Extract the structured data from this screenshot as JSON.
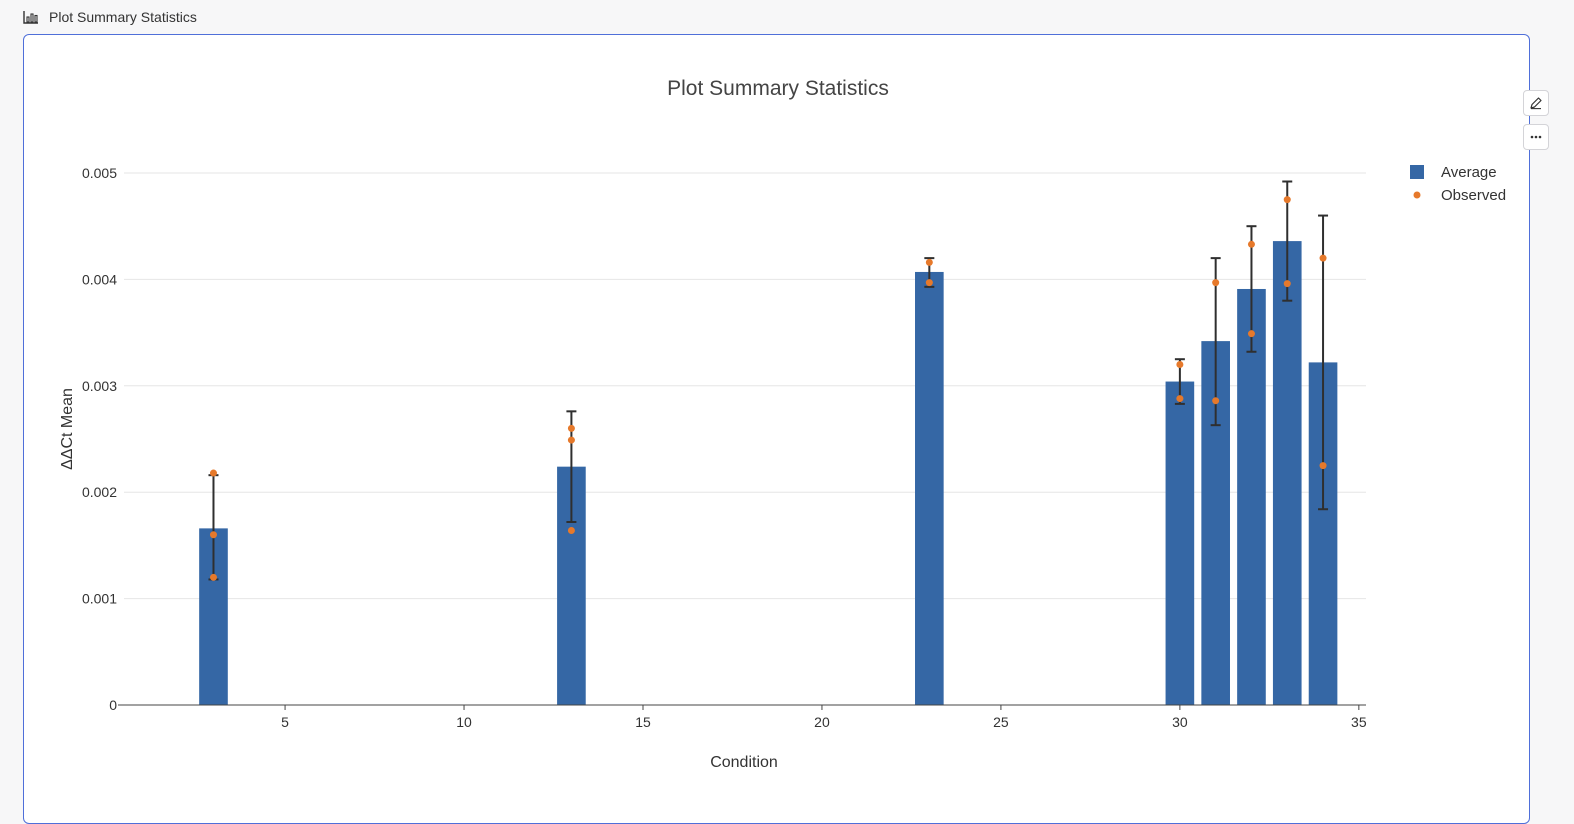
{
  "header": {
    "title": "Plot Summary Statistics",
    "icon": "bar-chart-icon"
  },
  "toolbar": {
    "edit_icon": "pencil-icon",
    "more_icon": "more-horizontal-icon"
  },
  "colors": {
    "bar": "#3567a5",
    "observed": "#e6792b",
    "error_bar": "#2f2f2f",
    "card_border": "#4f6fd9"
  },
  "chart_data": {
    "type": "bar",
    "title": "Plot Summary Statistics",
    "xlabel": "Condition",
    "ylabel": "ΔΔCt Mean",
    "xlim": [
      0.5,
      35.2
    ],
    "ylim": [
      0,
      0.005
    ],
    "x_ticks": [
      5,
      10,
      15,
      20,
      25,
      30,
      35
    ],
    "y_ticks": [
      0,
      0.001,
      0.002,
      0.003,
      0.004,
      0.005
    ],
    "y_tick_labels": [
      "0",
      "0.001",
      "0.002",
      "0.003",
      "0.004",
      "0.005"
    ],
    "grid": true,
    "legend": {
      "position": "top-right",
      "entries": [
        "Average",
        "Observed"
      ]
    },
    "series": [
      {
        "name": "Average",
        "type": "bar",
        "x": [
          3,
          13,
          23,
          30,
          31,
          32,
          33,
          34
        ],
        "values": [
          0.00166,
          0.00224,
          0.00407,
          0.00304,
          0.00342,
          0.00391,
          0.00436,
          0.00322
        ],
        "error_low": [
          0.00118,
          0.00172,
          0.00393,
          0.00283,
          0.00263,
          0.00332,
          0.0038,
          0.00184
        ],
        "error_high": [
          0.00216,
          0.00276,
          0.0042,
          0.00325,
          0.0042,
          0.0045,
          0.00492,
          0.0046
        ]
      },
      {
        "name": "Observed",
        "type": "scatter",
        "points": [
          [
            3,
            0.00218
          ],
          [
            3,
            0.0016
          ],
          [
            3,
            0.0012
          ],
          [
            13,
            0.0026
          ],
          [
            13,
            0.00249
          ],
          [
            13,
            0.00164
          ],
          [
            23,
            0.00416
          ],
          [
            23,
            0.00397
          ],
          [
            30,
            0.0032
          ],
          [
            30,
            0.00288
          ],
          [
            31,
            0.00397
          ],
          [
            31,
            0.00286
          ],
          [
            32,
            0.00433
          ],
          [
            32,
            0.00349
          ],
          [
            33,
            0.00475
          ],
          [
            33,
            0.00396
          ],
          [
            34,
            0.0042
          ],
          [
            34,
            0.00225
          ]
        ]
      }
    ]
  }
}
